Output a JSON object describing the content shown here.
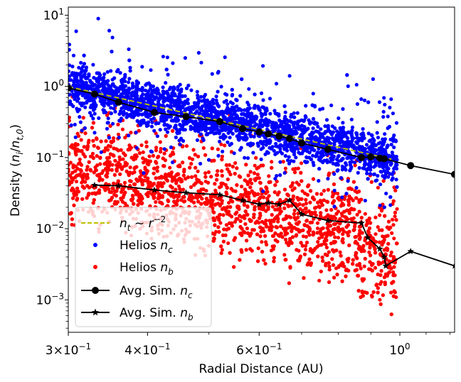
{
  "chart_data": {
    "type": "scatter",
    "xscale": "log",
    "yscale": "log",
    "xlim": [
      0.3,
      1.22
    ],
    "ylim": [
      0.00035,
      13
    ],
    "xlabel": "Radial Distance (AU)",
    "ylabel": "Density (n_i/n_t,0)",
    "ylabel_parts": {
      "pre": "Density (",
      "n": "n",
      "i": "i",
      "slash": "/",
      "n2": "n",
      "sub2": "t,0",
      "post": ")"
    },
    "xticks": [
      {
        "value": 0.3,
        "mant": "3",
        "base": "10",
        "exp": "−1"
      },
      {
        "value": 0.4,
        "mant": "4",
        "base": "10",
        "exp": "−1"
      },
      {
        "value": 0.6,
        "mant": "6",
        "base": "10",
        "exp": "−1"
      },
      {
        "value": 1.0,
        "mant": "",
        "base": "10",
        "exp": "0"
      }
    ],
    "yticks": [
      {
        "value": 10,
        "base": "10",
        "exp": "1"
      },
      {
        "value": 1,
        "base": "10",
        "exp": "0"
      },
      {
        "value": 0.1,
        "base": "10",
        "exp": "−1"
      },
      {
        "value": 0.01,
        "base": "10",
        "exp": "−2"
      },
      {
        "value": 0.001,
        "base": "10",
        "exp": "−3"
      }
    ],
    "legend": {
      "location": "lower-left",
      "entries": [
        {
          "key": "trend",
          "parts": [
            "n",
            "t",
            " ~ ",
            "r",
            "−2"
          ]
        },
        {
          "key": "helios_nc",
          "parts": [
            "Helios ",
            "n",
            "c"
          ]
        },
        {
          "key": "helios_nb",
          "parts": [
            "Helios ",
            "n",
            "b"
          ]
        },
        {
          "key": "sim_nc",
          "parts": [
            "Avg. Sim. ",
            "n",
            "c"
          ]
        },
        {
          "key": "sim_nb",
          "parts": [
            "Avg. Sim. ",
            "n",
            "b"
          ]
        }
      ]
    },
    "series": [
      {
        "name": "Avg. Sim. n_c",
        "color": "#000000",
        "marker": "circle",
        "x": [
          0.3,
          0.33,
          0.36,
          0.41,
          0.46,
          0.52,
          0.565,
          0.6,
          0.62,
          0.645,
          0.67,
          0.7,
          0.77,
          0.87,
          0.9,
          0.93,
          0.945,
          1.04,
          1.22
        ],
        "y": [
          0.95,
          0.78,
          0.6,
          0.43,
          0.375,
          0.32,
          0.255,
          0.228,
          0.215,
          0.2,
          0.185,
          0.16,
          0.13,
          0.1,
          0.102,
          0.098,
          0.096,
          0.077,
          0.058
        ]
      },
      {
        "name": "Avg. Sim. n_b",
        "color": "#000000",
        "marker": "star",
        "x": [
          0.33,
          0.36,
          0.41,
          0.46,
          0.52,
          0.565,
          0.6,
          0.62,
          0.645,
          0.67,
          0.7,
          0.77,
          0.87,
          0.89,
          0.93,
          0.945,
          0.95,
          1.04,
          1.22
        ],
        "y": [
          0.041,
          0.04,
          0.035,
          0.032,
          0.03,
          0.025,
          0.022,
          0.023,
          0.022,
          0.025,
          0.016,
          0.013,
          0.012,
          0.0075,
          0.0052,
          0.004,
          0.003,
          0.0048,
          0.003
        ]
      },
      {
        "name": "n_t ~ r^-2",
        "color": "#bfbf00",
        "style": "dashed",
        "x": [
          0.3,
          0.97
        ],
        "y": [
          0.99,
          0.095
        ]
      },
      {
        "name": "Helios n_c",
        "color": "#0000ff",
        "marker": "dot",
        "x_range": [
          0.3,
          0.99
        ],
        "trend_at_0.3": 0.99
      },
      {
        "name": "Helios n_b",
        "color": "#ff0000",
        "marker": "dot",
        "x_range": [
          0.3,
          0.99
        ],
        "typical_fraction_of_nc": 0.08
      }
    ]
  }
}
